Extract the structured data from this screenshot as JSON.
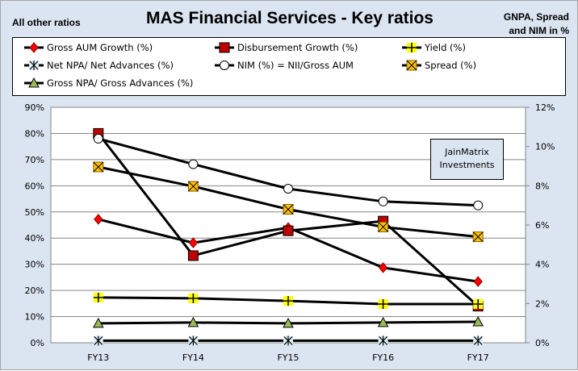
{
  "chart_data": {
    "type": "line",
    "title": "MAS Financial Services - Key ratios",
    "left_axis_note": "All other ratios",
    "right_axis_note_line1": "GNPA, Spread",
    "right_axis_note_line2": "and  NIM in %",
    "categories": [
      "FY13",
      "FY14",
      "FY15",
      "FY16",
      "FY17"
    ],
    "y_left": {
      "min": 0,
      "max": 90,
      "step": 10,
      "ticks": [
        "0%",
        "10%",
        "20%",
        "30%",
        "40%",
        "50%",
        "60%",
        "70%",
        "80%",
        "90%"
      ]
    },
    "y_right": {
      "min": 0,
      "max": 12,
      "step": 2,
      "ticks": [
        "0%",
        "2%",
        "4%",
        "6%",
        "8%",
        "10%",
        "12%"
      ]
    },
    "grid": true,
    "legend_position": "top",
    "watermark_line1": "JainMatrix",
    "watermark_line2": "Investments",
    "series": [
      {
        "name": "Gross AUM Growth (%)",
        "axis": "left",
        "marker": "diamond",
        "color": "#ff0000",
        "values": [
          47.2,
          38.2,
          44.0,
          28.7,
          23.4
        ]
      },
      {
        "name": "Disbursement Growth (%)",
        "axis": "left",
        "marker": "square",
        "color": "#c00000",
        "values": [
          80.0,
          33.3,
          42.8,
          46.5,
          14.0
        ]
      },
      {
        "name": "Yield (%)",
        "axis": "left",
        "marker": "plus-square",
        "color": "#ffff00",
        "values": [
          17.3,
          17.0,
          16.0,
          14.8,
          14.8
        ]
      },
      {
        "name": "Net NPA/ Net Advances (%)",
        "axis": "left",
        "marker": "asterisk",
        "color": "#dbeef4",
        "values": [
          0.8,
          0.8,
          0.8,
          0.8,
          0.8
        ]
      },
      {
        "name": "NIM (%) = NII/Gross AUM",
        "axis": "right",
        "marker": "circle",
        "color": "#ffffff",
        "values": [
          10.4,
          9.1,
          7.85,
          7.2,
          7.0
        ]
      },
      {
        "name": "Spread (%)",
        "axis": "right",
        "marker": "x-square",
        "color": "#ffc000",
        "values": [
          8.96,
          7.97,
          6.8,
          5.9,
          5.4
        ]
      },
      {
        "name": "Gross NPA/ Gross Advances (%)",
        "axis": "right",
        "marker": "triangle",
        "color": "#9bbb59",
        "values": [
          0.99,
          1.03,
          0.99,
          1.03,
          1.07
        ]
      }
    ]
  }
}
